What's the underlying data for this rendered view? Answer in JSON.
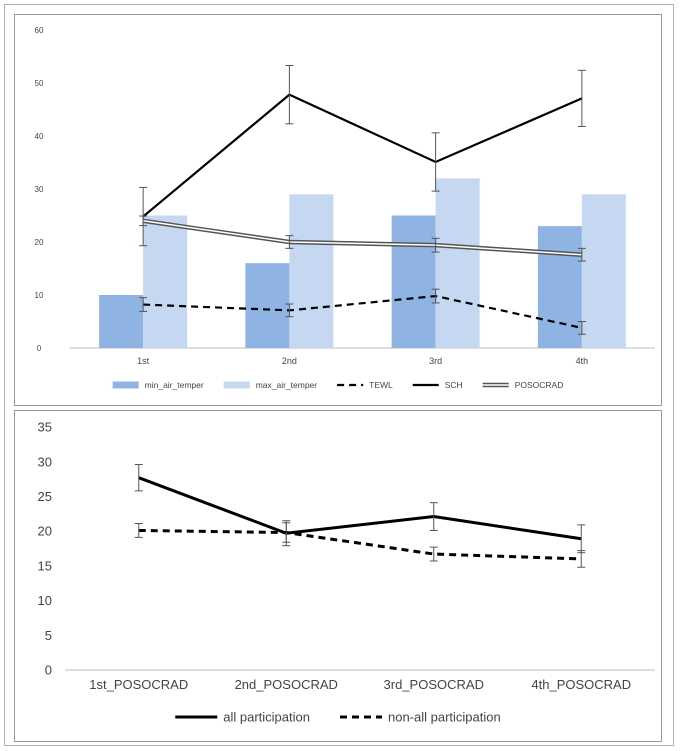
{
  "chart_data": [
    {
      "type": "bar",
      "title": "",
      "xlabel": "",
      "ylabel": "",
      "ylim": [
        0,
        60
      ],
      "yticks": [
        0,
        10,
        20,
        30,
        40,
        50,
        60
      ],
      "grid": false,
      "legend_position": "bottom",
      "categories": [
        "1st",
        "2nd",
        "3rd",
        "4th"
      ],
      "series": [
        {
          "name": "min_air_temper",
          "kind": "bar",
          "color": "#8fb4e3",
          "values": [
            10,
            16,
            25,
            23
          ]
        },
        {
          "name": "max_air_temper",
          "kind": "bar",
          "color": "#c5d7f1",
          "values": [
            25,
            29,
            32,
            29
          ]
        },
        {
          "name": "TEWL",
          "kind": "line",
          "style": "dashed",
          "color": "#000000",
          "values": [
            8.2,
            7.1,
            9.8,
            3.8
          ],
          "error": [
            1.3,
            1.2,
            1.3,
            1.2
          ]
        },
        {
          "name": "SCH",
          "kind": "line",
          "style": "solid",
          "color": "#000000",
          "values": [
            24.8,
            47.8,
            35.1,
            47.1
          ],
          "error": [
            5.5,
            5.5,
            5.5,
            5.3
          ]
        },
        {
          "name": "POSOCRAD",
          "kind": "line",
          "style": "double",
          "color": "#555555",
          "values": [
            24,
            20,
            19.4,
            17.6
          ],
          "error": [
            0.9,
            1.2,
            1.3,
            1.2
          ]
        }
      ]
    },
    {
      "type": "line",
      "title": "",
      "xlabel": "",
      "ylabel": "",
      "ylim": [
        0,
        35
      ],
      "yticks": [
        0,
        5,
        10,
        15,
        20,
        25,
        30,
        35
      ],
      "grid": false,
      "legend_position": "bottom",
      "categories": [
        "1st_POSOCRAD",
        "2nd_POSOCRAD",
        "3rd_POSOCRAD",
        "4th_POSOCRAD"
      ],
      "series": [
        {
          "name": "all participation",
          "style": "solid",
          "color": "#000000",
          "values": [
            27.7,
            19.7,
            22.1,
            18.9
          ],
          "error": [
            1.9,
            1.8,
            2.0,
            2.0
          ]
        },
        {
          "name": "non-all participation",
          "style": "dashed",
          "color": "#000000",
          "values": [
            20.1,
            19.8,
            16.7,
            16.0
          ],
          "error": [
            1.0,
            1.4,
            1.0,
            1.2
          ]
        }
      ]
    }
  ]
}
